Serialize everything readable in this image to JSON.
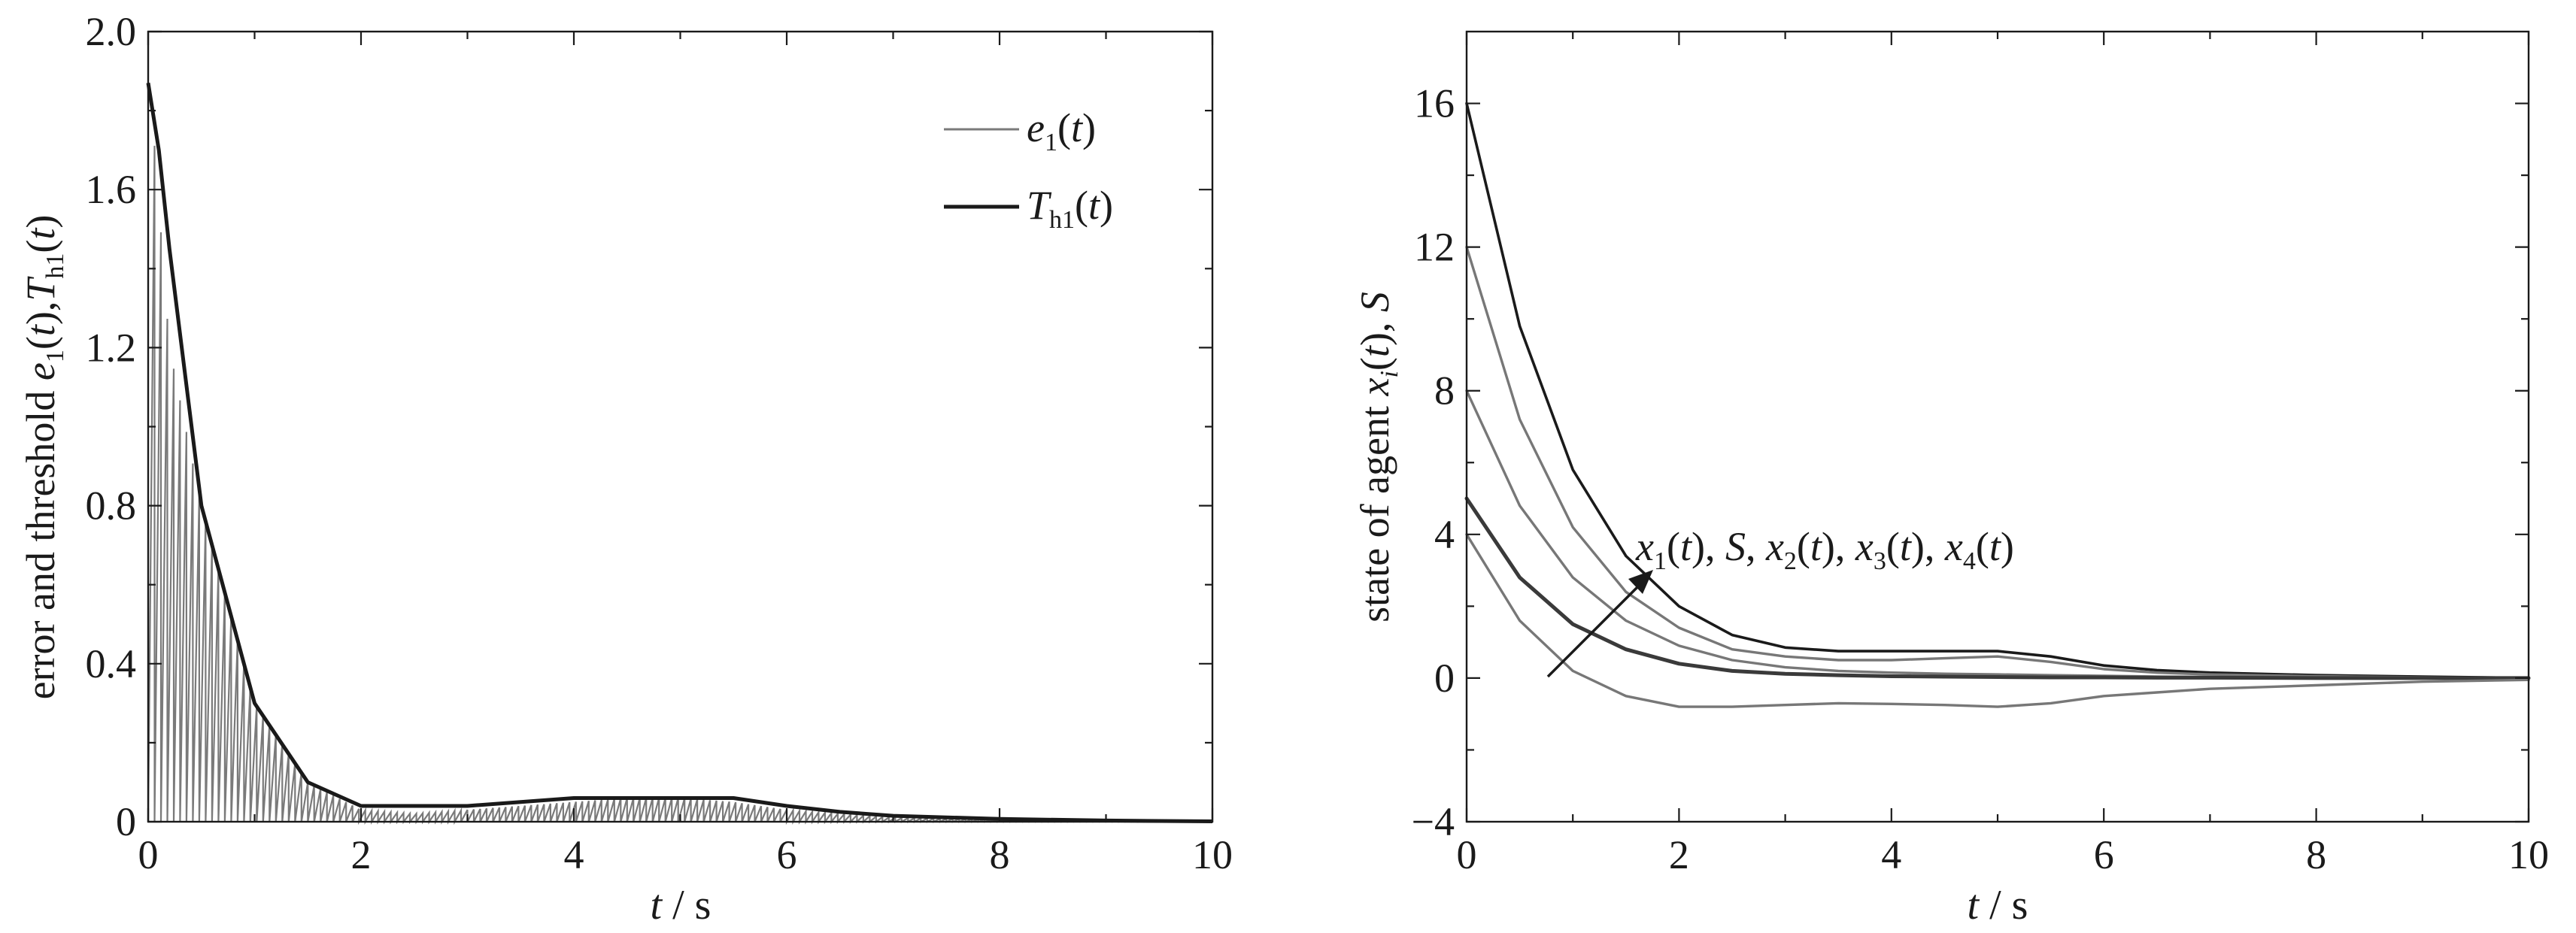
{
  "chart_data": [
    {
      "type": "line",
      "panel": "left",
      "xlabel": "t / s",
      "ylabel": "error and threshold e1(t),Th1(t)",
      "xlim": [
        0,
        10
      ],
      "ylim": [
        0,
        2.0
      ],
      "x_ticks": [
        "0",
        "2",
        "4",
        "6",
        "8",
        "10"
      ],
      "y_ticks": [
        "0",
        "0.4",
        "0.8",
        "1.2",
        "1.6",
        "2.0"
      ],
      "legend_position": "top-right",
      "series": [
        {
          "name": "e1(t)",
          "color": "#7a7a7a",
          "x": [
            0,
            0.2,
            0.5,
            1.0,
            1.5,
            2.0,
            2.5,
            3.0,
            3.5,
            4.0,
            4.5,
            5.0,
            5.5,
            6.0,
            6.5,
            7.0,
            8.0,
            9.0,
            10.0
          ],
          "y": [
            1.93,
            1.2,
            0.8,
            0.3,
            0.1,
            0.03,
            0.02,
            0.03,
            0.04,
            0.05,
            0.06,
            0.06,
            0.05,
            0.03,
            0.02,
            0.01,
            0.005,
            0.002,
            0.001
          ]
        },
        {
          "name": "Th1(t)",
          "color": "#1a1a1a",
          "x": [
            0,
            0.1,
            0.2,
            0.5,
            1.0,
            1.5,
            2.0,
            2.5,
            3.0,
            3.5,
            4.0,
            4.5,
            5.0,
            5.5,
            6.0,
            6.5,
            7.0,
            8.0,
            9.0,
            10.0
          ],
          "y": [
            1.87,
            1.7,
            1.45,
            0.8,
            0.3,
            0.1,
            0.04,
            0.04,
            0.04,
            0.05,
            0.06,
            0.06,
            0.06,
            0.06,
            0.04,
            0.025,
            0.015,
            0.007,
            0.003,
            0.001
          ]
        }
      ]
    },
    {
      "type": "line",
      "panel": "right",
      "xlabel": "t / s",
      "ylabel": "state of agent xi(t), S",
      "xlim": [
        0,
        10
      ],
      "ylim": [
        -4,
        18
      ],
      "x_ticks": [
        "0",
        "2",
        "4",
        "6",
        "8",
        "10"
      ],
      "y_ticks": [
        "-4",
        "0",
        "4",
        "8",
        "12",
        "16"
      ],
      "annotation": "x1(t), S, x2(t), x3(t), x4(t)",
      "series": [
        {
          "initial": 16,
          "color": "#1a1a1a",
          "width": 3.6,
          "x": [
            0,
            0.5,
            1,
            1.5,
            2,
            2.5,
            3,
            3.5,
            4,
            4.5,
            5,
            5.5,
            6,
            6.5,
            7,
            8,
            9,
            10
          ],
          "y": [
            16,
            9.8,
            5.8,
            3.4,
            2.0,
            1.2,
            0.85,
            0.75,
            0.75,
            0.75,
            0.75,
            0.6,
            0.35,
            0.22,
            0.15,
            0.08,
            0.04,
            0.0
          ]
        },
        {
          "initial": 12,
          "color": "#777777",
          "width": 3.4,
          "x": [
            0,
            0.5,
            1,
            1.5,
            2,
            2.5,
            3,
            3.5,
            4,
            4.5,
            5,
            5.5,
            6,
            6.5,
            7,
            8,
            9,
            10
          ],
          "y": [
            12,
            7.2,
            4.2,
            2.4,
            1.4,
            0.8,
            0.6,
            0.5,
            0.5,
            0.55,
            0.6,
            0.45,
            0.25,
            0.15,
            0.1,
            0.05,
            0.02,
            0.0
          ]
        },
        {
          "initial": 8,
          "color": "#777777",
          "width": 3.4,
          "x": [
            0,
            0.5,
            1,
            1.5,
            2,
            2.5,
            3,
            3.5,
            4,
            4.5,
            5,
            5.5,
            6,
            6.5,
            7,
            8,
            9,
            10
          ],
          "y": [
            8,
            4.8,
            2.8,
            1.6,
            0.9,
            0.5,
            0.3,
            0.2,
            0.15,
            0.12,
            0.1,
            0.08,
            0.06,
            0.04,
            0.03,
            0.01,
            0.0,
            0.0
          ]
        },
        {
          "initial": 5,
          "color": "#3a3a3a",
          "width": 5.0,
          "x": [
            0,
            0.5,
            1,
            1.5,
            2,
            2.5,
            3,
            3.5,
            4,
            4.5,
            5,
            5.5,
            6,
            6.5,
            7,
            8,
            9,
            10
          ],
          "y": [
            5,
            2.8,
            1.5,
            0.8,
            0.4,
            0.2,
            0.12,
            0.08,
            0.05,
            0.04,
            0.03,
            0.02,
            0.02,
            0.01,
            0.01,
            0.0,
            0.0,
            0.0
          ]
        },
        {
          "initial": 4,
          "color": "#777777",
          "width": 3.4,
          "x": [
            0,
            0.5,
            1,
            1.5,
            2,
            2.5,
            3,
            3.5,
            4,
            4.5,
            5,
            5.5,
            6,
            6.5,
            7,
            8,
            9,
            10
          ],
          "y": [
            4,
            1.6,
            0.2,
            -0.5,
            -0.8,
            -0.8,
            -0.75,
            -0.7,
            -0.72,
            -0.75,
            -0.8,
            -0.7,
            -0.5,
            -0.4,
            -0.3,
            -0.2,
            -0.1,
            -0.05
          ]
        }
      ]
    }
  ]
}
